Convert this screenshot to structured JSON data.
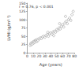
{
  "chart_data": {
    "type": "scatter",
    "annotation": "r = 0.76, p < 0.001",
    "x_label": "Age (years)",
    "y_label": "LVMI (g/m²·⁷)",
    "x": [
      5,
      6,
      7,
      8,
      9,
      10,
      11,
      12,
      13,
      14,
      15,
      16,
      17,
      18,
      20,
      22,
      24,
      26,
      28,
      30,
      32,
      34,
      36,
      38,
      40,
      42,
      44,
      46,
      48,
      50,
      52,
      54,
      56,
      58,
      60,
      62,
      64,
      66,
      68,
      70,
      72,
      74,
      76,
      78,
      45,
      55,
      65,
      35
    ],
    "values": [
      22,
      28,
      25,
      30,
      27,
      33,
      30,
      35,
      32,
      38,
      36,
      34,
      40,
      37,
      42,
      45,
      43,
      48,
      50,
      47,
      52,
      55,
      50,
      58,
      60,
      56,
      63,
      65,
      62,
      70,
      68,
      75,
      72,
      80,
      85,
      78,
      90,
      95,
      88,
      100,
      105,
      98,
      115,
      125,
      52,
      88,
      110,
      62
    ],
    "color": "#888888",
    "marker": "circle",
    "xlim": [
      0,
      80
    ],
    "xticks": [
      0,
      10,
      20,
      30,
      40,
      50,
      60,
      70,
      80
    ],
    "ylim": [
      0,
      150
    ],
    "yticks": [
      0,
      25,
      50,
      75,
      100,
      125,
      150
    ],
    "grid": false
  }
}
